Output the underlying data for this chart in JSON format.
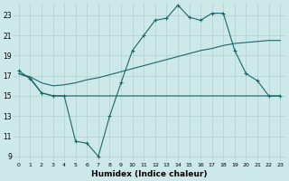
{
  "xlabel": "Humidex (Indice chaleur)",
  "bg_color": "#cce8e8",
  "grid_color": "#b0d0d0",
  "line_color": "#1a6868",
  "xlim": [
    -0.5,
    23.5
  ],
  "ylim": [
    8.5,
    24.2
  ],
  "xticks": [
    0,
    1,
    2,
    3,
    4,
    5,
    6,
    7,
    8,
    9,
    10,
    11,
    12,
    13,
    14,
    15,
    16,
    17,
    18,
    19,
    20,
    21,
    22,
    23
  ],
  "yticks": [
    9,
    11,
    13,
    15,
    17,
    19,
    21,
    23
  ],
  "line1_x": [
    0,
    1,
    2,
    3,
    4,
    5,
    6,
    7,
    8,
    9,
    10,
    11,
    12,
    13,
    14,
    15,
    16,
    17,
    18,
    19,
    20,
    21,
    22,
    23
  ],
  "line1_y": [
    17.5,
    16.7,
    15.3,
    15.0,
    15.0,
    10.5,
    10.3,
    9.0,
    13.0,
    16.3,
    19.5,
    21.0,
    22.5,
    22.7,
    24.0,
    22.8,
    22.5,
    23.2,
    23.2,
    19.5,
    17.2,
    16.5,
    15.0,
    15.0
  ],
  "line2_x": [
    0,
    1,
    2,
    3,
    4,
    5,
    6,
    7,
    8,
    9,
    10,
    11,
    12,
    13,
    14,
    15,
    16,
    17,
    18,
    19,
    20,
    21,
    22,
    23
  ],
  "line2_y": [
    17.2,
    16.8,
    15.3,
    15.0,
    15.0,
    15.0,
    15.0,
    15.0,
    15.0,
    15.0,
    15.0,
    15.0,
    15.0,
    15.0,
    15.0,
    15.0,
    15.0,
    15.0,
    15.0,
    15.0,
    15.0,
    15.0,
    15.0,
    15.0
  ],
  "line3_x": [
    0,
    1,
    2,
    3,
    4,
    5,
    6,
    7,
    8,
    9,
    10,
    11,
    12,
    13,
    14,
    15,
    16,
    17,
    18,
    19,
    20,
    21,
    22,
    23
  ],
  "line3_y": [
    17.2,
    16.9,
    16.3,
    16.0,
    16.1,
    16.3,
    16.6,
    16.8,
    17.1,
    17.4,
    17.7,
    18.0,
    18.3,
    18.6,
    18.9,
    19.2,
    19.5,
    19.7,
    20.0,
    20.2,
    20.3,
    20.4,
    20.5,
    20.5
  ]
}
